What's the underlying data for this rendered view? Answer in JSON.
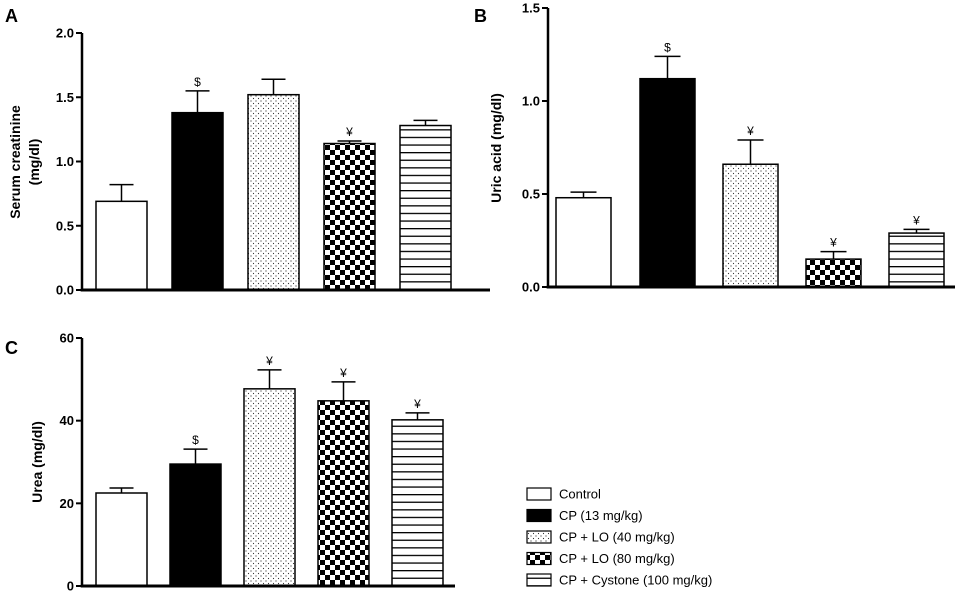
{
  "legend": {
    "entries": [
      {
        "label": "Control",
        "pattern": "open"
      },
      {
        "label": "CP (13 mg/kg)",
        "pattern": "solid"
      },
      {
        "label": "CP + LO (40 mg/kg)",
        "pattern": "dotted"
      },
      {
        "label": "CP + LO (80 mg/kg)",
        "pattern": "checkered"
      },
      {
        "label": "CP + Cystone (100 mg/kg)",
        "pattern": "horizontal-lines"
      }
    ]
  },
  "chart_data": [
    {
      "panel": "A",
      "type": "bar",
      "title": "",
      "xlabel": "",
      "ylabel": [
        "Serum creatinine",
        "(mg/dl)"
      ],
      "ylim": [
        0,
        2.0
      ],
      "yticks": [
        "0.0",
        "0.5",
        "1.0",
        "1.5",
        "2.0"
      ],
      "values": [
        0.69,
        1.38,
        1.52,
        1.14,
        1.28
      ],
      "errors": [
        0.13,
        0.17,
        0.12,
        0.02,
        0.04
      ],
      "annotations": [
        "",
        "$",
        "",
        "¥",
        ""
      ],
      "grid": false
    },
    {
      "panel": "B",
      "type": "bar",
      "title": "",
      "xlabel": "",
      "ylabel": [
        "Uric acid (mg/dl)"
      ],
      "ylim": [
        0,
        1.5
      ],
      "yticks": [
        "0.0",
        "0.5",
        "1.0",
        "1.5"
      ],
      "values": [
        0.48,
        1.12,
        0.66,
        0.15,
        0.29
      ],
      "errors": [
        0.03,
        0.12,
        0.13,
        0.04,
        0.02
      ],
      "annotations": [
        "",
        "$",
        "¥",
        "¥",
        "¥"
      ],
      "grid": false
    },
    {
      "panel": "C",
      "type": "bar",
      "title": "",
      "xlabel": "",
      "ylabel": [
        "Urea (mg/dl)"
      ],
      "ylim": [
        0,
        60
      ],
      "yticks": [
        "0",
        "20",
        "40",
        "60"
      ],
      "values": [
        22.5,
        29.5,
        47.7,
        44.8,
        40.2
      ],
      "errors": [
        1.2,
        3.6,
        4.6,
        4.6,
        1.7
      ],
      "annotations": [
        "",
        "$",
        "¥",
        "¥",
        "¥"
      ],
      "grid": false
    }
  ]
}
